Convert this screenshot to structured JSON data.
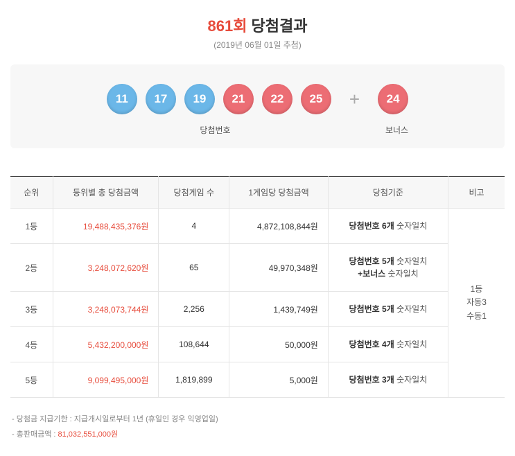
{
  "header": {
    "round": "861회",
    "title_suffix": " 당첨결과",
    "date": "(2019년 06월 01일 추첨)"
  },
  "balls": {
    "main": [
      {
        "num": "11",
        "color": "#6bb7e8"
      },
      {
        "num": "17",
        "color": "#6bb7e8"
      },
      {
        "num": "19",
        "color": "#6bb7e8"
      },
      {
        "num": "21",
        "color": "#ec6d74"
      },
      {
        "num": "22",
        "color": "#ec6d74"
      },
      {
        "num": "25",
        "color": "#ec6d74"
      }
    ],
    "bonus": {
      "num": "24",
      "color": "#ec6d74"
    },
    "label_main": "당첨번호",
    "label_bonus": "보너스",
    "plus": "+"
  },
  "table": {
    "headers": [
      "순위",
      "등위별 총 당첨금액",
      "당첨게임 수",
      "1게임당 당첨금액",
      "당첨기준",
      "비고"
    ],
    "col_widths": [
      "60px",
      "150px",
      "100px",
      "140px",
      "170px",
      "80px"
    ],
    "rows": [
      {
        "rank": "1등",
        "total": "19,488,435,376원",
        "count": "4",
        "per": "4,872,108,844원",
        "crit_bold": "당첨번호 6개",
        "crit_rest": " 숫자일치"
      },
      {
        "rank": "2등",
        "total": "3,248,072,620원",
        "count": "65",
        "per": "49,970,348원",
        "crit_bold": "당첨번호 5개",
        "crit_rest": " 숫자일치",
        "crit_line2_bold": "+보너스",
        "crit_line2_rest": " 숫자일치"
      },
      {
        "rank": "3등",
        "total": "3,248,073,744원",
        "count": "2,256",
        "per": "1,439,749원",
        "crit_bold": "당첨번호 5개",
        "crit_rest": " 숫자일치"
      },
      {
        "rank": "4등",
        "total": "5,432,200,000원",
        "count": "108,644",
        "per": "50,000원",
        "crit_bold": "당첨번호 4개",
        "crit_rest": " 숫자일치"
      },
      {
        "rank": "5등",
        "total": "9,099,495,000원",
        "count": "1,819,899",
        "per": "5,000원",
        "crit_bold": "당첨번호 3개",
        "crit_rest": " 숫자일치"
      }
    ],
    "note": {
      "line1": "1등",
      "line2": "자동3",
      "line3": "수동1"
    }
  },
  "footnotes": {
    "f1": "당첨금 지급기한 : 지급개시일로부터 1년 (휴일인 경우 익영업일)",
    "f2_label": "총판매금액 : ",
    "f2_value": "81,032,551,000원"
  }
}
